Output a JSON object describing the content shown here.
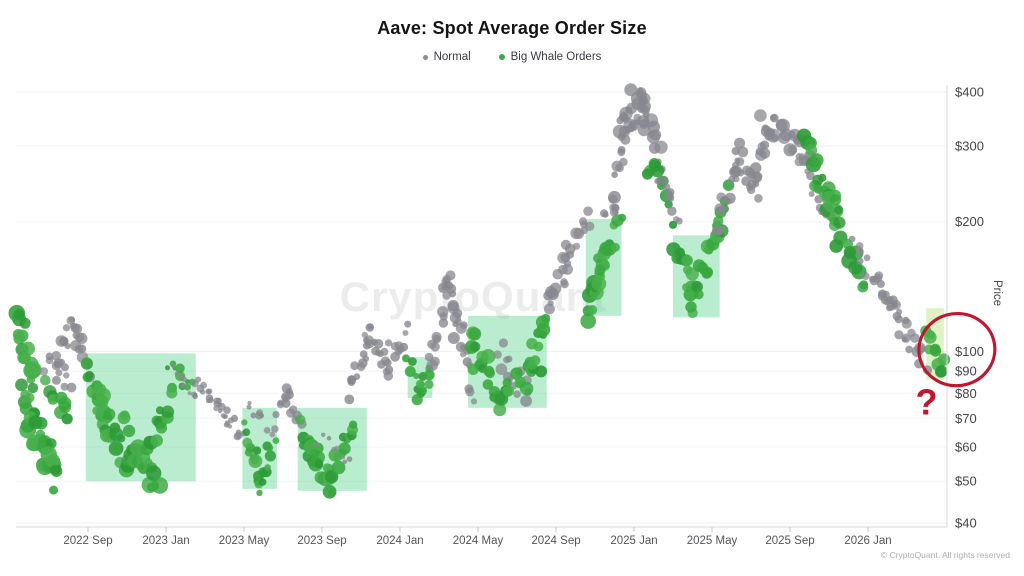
{
  "branding": {
    "watermark": "CryptoQuant",
    "copyright": "© CryptoQuant. All rights reserved"
  },
  "chart_data": {
    "type": "scatter",
    "title": "Aave: Spot Average Order Size",
    "ylabel": "Price",
    "yscale": "log",
    "ylim": [
      40,
      415
    ],
    "x_range": [
      "2022-05",
      "2026-05"
    ],
    "grid": "faint-horizontal",
    "legend": [
      {
        "label": "Normal",
        "color": "#8b8b93"
      },
      {
        "label": "Big Whale Orders",
        "color": "#3faa44"
      }
    ],
    "colors": {
      "normal": "#87878f",
      "whale": [
        "#2d9a37",
        "#38a73e",
        "#47b04b"
      ],
      "box_fill": "rgba(82,211,136,0.40)",
      "strip_fill": "rgba(170,221,99,0.38)",
      "annotation": "#bf1730",
      "axis_line": "#d8d8dc",
      "tick_text": "#55555a",
      "grid_line": "rgba(0,0,0,0.05)"
    },
    "y_ticks": [
      {
        "label": "$400",
        "value": 400
      },
      {
        "label": "$300",
        "value": 300
      },
      {
        "label": "$200",
        "value": 200
      },
      {
        "label": "$100",
        "value": 100
      },
      {
        "label": "$90",
        "value": 90
      },
      {
        "label": "$80",
        "value": 80
      },
      {
        "label": "$70",
        "value": 70
      },
      {
        "label": "$60",
        "value": 60
      },
      {
        "label": "$50",
        "value": 50
      },
      {
        "label": "$40",
        "value": 40
      }
    ],
    "x_ticks": [
      {
        "label": "2022 Sep",
        "date": "2022-09-01"
      },
      {
        "label": "2023 Jan",
        "date": "2023-01-01"
      },
      {
        "label": "2023 May",
        "date": "2023-05-01"
      },
      {
        "label": "2023 Sep",
        "date": "2023-09-01"
      },
      {
        "label": "2024 Jan",
        "date": "2024-01-01"
      },
      {
        "label": "2024 May",
        "date": "2024-05-01"
      },
      {
        "label": "2024 Sep",
        "date": "2024-09-01"
      },
      {
        "label": "2025 Jan",
        "date": "2025-01-01"
      },
      {
        "label": "2025 May",
        "date": "2025-05-01"
      },
      {
        "label": "2025 Sep",
        "date": "2025-09-01"
      },
      {
        "label": "2026 Jan",
        "date": "2026-01-01"
      }
    ],
    "highlight_boxes": [
      {
        "from": "2022-08-28",
        "to": "2023-02-17",
        "price_high": 99,
        "price_low": 50
      },
      {
        "from": "2023-04-29",
        "to": "2023-06-22",
        "price_high": 74,
        "price_low": 48
      },
      {
        "from": "2023-07-24",
        "to": "2023-11-10",
        "price_high": 74,
        "price_low": 47.5
      },
      {
        "from": "2024-01-13",
        "to": "2024-02-21",
        "price_high": 97,
        "price_low": 78
      },
      {
        "from": "2024-04-16",
        "to": "2024-08-17",
        "price_high": 121,
        "price_low": 74
      },
      {
        "from": "2024-10-17",
        "to": "2024-12-12",
        "price_high": 203,
        "price_low": 121
      },
      {
        "from": "2025-03-01",
        "to": "2025-05-13",
        "price_high": 186,
        "price_low": 120
      }
    ],
    "highlight_strip": {
      "from": "2026-03-31",
      "to": "2026-04-28",
      "price_high": 126,
      "price_low": 86
    },
    "annotations": {
      "highlight_circle": {
        "date": "2026-05-18",
        "price": 101
      },
      "question_mark": {
        "label": "?",
        "date": "2026-04-01",
        "price": 77
      }
    },
    "clusters": [
      {
        "from": "2022-05-13",
        "to": "2022-06-06",
        "p0": 121,
        "p1": 86,
        "type": "whale",
        "n": 16,
        "r": [
          4,
          9
        ],
        "s": 0.035
      },
      {
        "from": "2022-05-16",
        "to": "2022-06-17",
        "p0": 80,
        "p1": 71,
        "type": "whale",
        "n": 8,
        "r": [
          4,
          7
        ],
        "s": 0.02
      },
      {
        "from": "2022-05-29",
        "to": "2022-07-15",
        "p0": 73,
        "p1": 49,
        "type": "whale",
        "n": 24,
        "r": [
          4,
          9
        ],
        "s": 0.045
      },
      {
        "from": "2022-06-25",
        "to": "2022-08-06",
        "p0": 96,
        "p1": 83,
        "type": "normal",
        "n": 10,
        "r": [
          3,
          5
        ],
        "s": 0.03
      },
      {
        "from": "2022-06-29",
        "to": "2022-08-03",
        "p0": 86,
        "p1": 71,
        "type": "whale",
        "n": 9,
        "r": [
          4,
          7
        ],
        "s": 0.03
      },
      {
        "from": "2022-07-10",
        "to": "2022-08-11",
        "p0": 94,
        "p1": 117,
        "type": "normal",
        "n": 12,
        "r": [
          3,
          6
        ],
        "s": 0.025
      },
      {
        "from": "2022-08-08",
        "to": "2022-09-05",
        "p0": 117,
        "p1": 88,
        "type": "normal",
        "n": 13,
        "r": [
          3,
          6
        ],
        "s": 0.025
      },
      {
        "from": "2022-09-01",
        "to": "2022-10-02",
        "p0": 94,
        "p1": 66,
        "type": "whale",
        "n": 14,
        "r": [
          4,
          8
        ],
        "s": 0.03
      },
      {
        "from": "2022-09-19",
        "to": "2022-11-05",
        "p0": 76,
        "p1": 53,
        "type": "whale",
        "n": 18,
        "r": [
          4,
          8
        ],
        "s": 0.035
      },
      {
        "from": "2022-10-28",
        "to": "2022-12-19",
        "p0": 67,
        "p1": 48,
        "type": "whale",
        "n": 20,
        "r": [
          4,
          9
        ],
        "s": 0.035
      },
      {
        "from": "2022-12-09",
        "to": "2023-01-22",
        "p0": 59,
        "p1": 88,
        "type": "whale",
        "n": 14,
        "r": [
          4,
          7
        ],
        "s": 0.03
      },
      {
        "from": "2023-01-07",
        "to": "2023-02-17",
        "p0": 92,
        "p1": 80,
        "type": "whale",
        "n": 8,
        "r": [
          2,
          4
        ],
        "s": 0.02
      },
      {
        "from": "2023-01-10",
        "to": "2023-02-17",
        "p0": 89,
        "p1": 80,
        "type": "normal",
        "n": 8,
        "r": [
          2,
          4
        ],
        "s": 0.02
      },
      {
        "from": "2023-02-17",
        "to": "2023-03-18",
        "p0": 85,
        "p1": 76,
        "type": "normal",
        "n": 10,
        "r": [
          2,
          4
        ],
        "s": 0.02
      },
      {
        "from": "2023-03-09",
        "to": "2023-04-09",
        "p0": 78,
        "p1": 66,
        "type": "normal",
        "n": 10,
        "r": [
          2,
          4
        ],
        "s": 0.02
      },
      {
        "from": "2023-03-30",
        "to": "2023-04-29",
        "p0": 74,
        "p1": 62,
        "type": "normal",
        "n": 10,
        "r": [
          2,
          4
        ],
        "s": 0.02
      },
      {
        "from": "2023-05-02",
        "to": "2023-05-29",
        "p0": 66,
        "p1": 50,
        "type": "whale",
        "n": 12,
        "r": [
          3,
          7
        ],
        "s": 0.03
      },
      {
        "from": "2023-05-23",
        "to": "2023-06-19",
        "p0": 51,
        "p1": 60,
        "type": "whale",
        "n": 10,
        "r": [
          3,
          6
        ],
        "s": 0.03
      },
      {
        "from": "2023-05-07",
        "to": "2023-06-11",
        "p0": 73,
        "p1": 66,
        "type": "normal",
        "n": 8,
        "r": [
          2,
          4
        ],
        "s": 0.02
      },
      {
        "from": "2023-06-22",
        "to": "2023-07-12",
        "p0": 68,
        "p1": 84,
        "type": "normal",
        "n": 8,
        "r": [
          3,
          5
        ],
        "s": 0.02
      },
      {
        "from": "2023-07-05",
        "to": "2023-07-27",
        "p0": 82,
        "p1": 67,
        "type": "normal",
        "n": 8,
        "r": [
          3,
          5
        ],
        "s": 0.02
      },
      {
        "from": "2023-07-27",
        "to": "2023-08-22",
        "p0": 66,
        "p1": 57,
        "type": "whale",
        "n": 10,
        "r": [
          3,
          6
        ],
        "s": 0.025
      },
      {
        "from": "2023-08-08",
        "to": "2023-09-19",
        "p0": 58,
        "p1": 50,
        "type": "whale",
        "n": 16,
        "r": [
          4,
          8
        ],
        "s": 0.03
      },
      {
        "from": "2023-09-13",
        "to": "2023-10-20",
        "p0": 52,
        "p1": 71,
        "type": "whale",
        "n": 14,
        "r": [
          4,
          7
        ],
        "s": 0.03
      },
      {
        "from": "2023-08-25",
        "to": "2023-10-14",
        "p0": 62,
        "p1": 57,
        "type": "normal",
        "n": 8,
        "r": [
          2,
          3
        ],
        "s": 0.02
      },
      {
        "from": "2023-10-09",
        "to": "2023-11-18",
        "p0": 82,
        "p1": 111,
        "type": "normal",
        "n": 14,
        "r": [
          3,
          5
        ],
        "s": 0.025
      },
      {
        "from": "2023-11-09",
        "to": "2023-12-19",
        "p0": 111,
        "p1": 91,
        "type": "normal",
        "n": 12,
        "r": [
          3,
          5
        ],
        "s": 0.025
      },
      {
        "from": "2023-12-06",
        "to": "2024-01-13",
        "p0": 95,
        "p1": 111,
        "type": "normal",
        "n": 12,
        "r": [
          3,
          5
        ],
        "s": 0.025
      },
      {
        "from": "2024-01-15",
        "to": "2024-02-03",
        "p0": 95,
        "p1": 79,
        "type": "whale",
        "n": 8,
        "r": [
          3,
          6
        ],
        "s": 0.02
      },
      {
        "from": "2024-01-29",
        "to": "2024-02-20",
        "p0": 80,
        "p1": 92,
        "type": "whale",
        "n": 7,
        "r": [
          3,
          6
        ],
        "s": 0.02
      },
      {
        "from": "2024-02-17",
        "to": "2024-03-18",
        "p0": 92,
        "p1": 148,
        "type": "normal",
        "n": 14,
        "r": [
          3,
          6
        ],
        "s": 0.03
      },
      {
        "from": "2024-03-09",
        "to": "2024-04-06",
        "p0": 150,
        "p1": 114,
        "type": "normal",
        "n": 12,
        "r": [
          3,
          6
        ],
        "s": 0.03
      },
      {
        "from": "2024-03-26",
        "to": "2024-04-25",
        "p0": 118,
        "p1": 81,
        "type": "normal",
        "n": 12,
        "r": [
          3,
          6
        ],
        "s": 0.03
      },
      {
        "from": "2024-04-19",
        "to": "2024-06-05",
        "p0": 104,
        "p1": 78,
        "type": "whale",
        "n": 18,
        "r": [
          4,
          8
        ],
        "s": 0.04
      },
      {
        "from": "2024-06-02",
        "to": "2024-07-18",
        "p0": 99,
        "p1": 80,
        "type": "normal",
        "n": 14,
        "r": [
          3,
          6
        ],
        "s": 0.035
      },
      {
        "from": "2024-06-12",
        "to": "2024-08-06",
        "p0": 80,
        "p1": 95,
        "type": "whale",
        "n": 12,
        "r": [
          4,
          7
        ],
        "s": 0.03
      },
      {
        "from": "2024-07-18",
        "to": "2024-08-19",
        "p0": 95,
        "p1": 119,
        "type": "whale",
        "n": 10,
        "r": [
          4,
          7
        ],
        "s": 0.025
      },
      {
        "from": "2024-08-17",
        "to": "2024-09-19",
        "p0": 124,
        "p1": 160,
        "type": "normal",
        "n": 12,
        "r": [
          3,
          6
        ],
        "s": 0.025
      },
      {
        "from": "2024-09-10",
        "to": "2024-10-23",
        "p0": 160,
        "p1": 205,
        "type": "normal",
        "n": 14,
        "r": [
          3,
          6
        ],
        "s": 0.025
      },
      {
        "from": "2024-10-17",
        "to": "2024-11-15",
        "p0": 123,
        "p1": 160,
        "type": "whale",
        "n": 12,
        "r": [
          4,
          8
        ],
        "s": 0.03
      },
      {
        "from": "2024-11-03",
        "to": "2024-12-09",
        "p0": 150,
        "p1": 197,
        "type": "whale",
        "n": 12,
        "r": [
          4,
          8
        ],
        "s": 0.03
      },
      {
        "from": "2024-11-18",
        "to": "2024-12-06",
        "p0": 207,
        "p1": 220,
        "type": "normal",
        "n": 6,
        "r": [
          3,
          5
        ],
        "s": 0.015
      },
      {
        "from": "2024-11-27",
        "to": "2024-12-25",
        "p0": 215,
        "p1": 386,
        "type": "normal",
        "n": 16,
        "r": [
          3,
          7
        ],
        "s": 0.03
      },
      {
        "from": "2024-12-12",
        "to": "2025-01-22",
        "p0": 330,
        "p1": 392,
        "type": "normal",
        "n": 20,
        "r": [
          3,
          7
        ],
        "s": 0.03
      },
      {
        "from": "2025-01-07",
        "to": "2025-02-14",
        "p0": 380,
        "p1": 282,
        "type": "normal",
        "n": 16,
        "r": [
          3,
          7
        ],
        "s": 0.03
      },
      {
        "from": "2025-01-22",
        "to": "2025-02-26",
        "p0": 272,
        "p1": 226,
        "type": "whale",
        "n": 10,
        "r": [
          4,
          7
        ],
        "s": 0.025
      },
      {
        "from": "2025-02-11",
        "to": "2025-03-09",
        "p0": 252,
        "p1": 202,
        "type": "normal",
        "n": 8,
        "r": [
          3,
          5
        ],
        "s": 0.02
      },
      {
        "from": "2025-03-03",
        "to": "2025-04-05",
        "p0": 184,
        "p1": 131,
        "type": "whale",
        "n": 14,
        "r": [
          4,
          8
        ],
        "s": 0.03
      },
      {
        "from": "2025-03-27",
        "to": "2025-04-22",
        "p0": 129,
        "p1": 149,
        "type": "whale",
        "n": 8,
        "r": [
          4,
          7
        ],
        "s": 0.025
      },
      {
        "from": "2025-04-13",
        "to": "2025-05-12",
        "p0": 150,
        "p1": 192,
        "type": "whale",
        "n": 10,
        "r": [
          4,
          7
        ],
        "s": 0.025
      },
      {
        "from": "2025-05-08",
        "to": "2025-05-26",
        "p0": 195,
        "p1": 240,
        "type": "whale",
        "n": 7,
        "r": [
          4,
          6
        ],
        "s": 0.02
      },
      {
        "from": "2025-05-10",
        "to": "2025-06-17",
        "p0": 196,
        "p1": 289,
        "type": "normal",
        "n": 16,
        "r": [
          3,
          6
        ],
        "s": 0.025
      },
      {
        "from": "2025-06-08",
        "to": "2025-07-09",
        "p0": 286,
        "p1": 232,
        "type": "normal",
        "n": 10,
        "r": [
          3,
          5
        ],
        "s": 0.02
      },
      {
        "from": "2025-06-27",
        "to": "2025-08-03",
        "p0": 238,
        "p1": 330,
        "type": "normal",
        "n": 14,
        "r": [
          3,
          6
        ],
        "s": 0.025
      },
      {
        "from": "2025-07-18",
        "to": "2025-10-05",
        "p0": 344,
        "p1": 283,
        "type": "normal",
        "n": 24,
        "r": [
          3,
          7
        ],
        "s": 0.035
      },
      {
        "from": "2025-09-16",
        "to": "2025-11-03",
        "p0": 292,
        "p1": 201,
        "type": "normal",
        "n": 12,
        "r": [
          3,
          5
        ],
        "s": 0.03
      },
      {
        "from": "2025-09-26",
        "to": "2025-11-15",
        "p0": 308,
        "p1": 186,
        "type": "whale",
        "n": 18,
        "r": [
          4,
          8
        ],
        "s": 0.035
      },
      {
        "from": "2025-10-30",
        "to": "2025-12-25",
        "p0": 229,
        "p1": 144,
        "type": "whale",
        "n": 16,
        "r": [
          4,
          8
        ],
        "s": 0.035
      },
      {
        "from": "2025-12-11",
        "to": "2026-01-27",
        "p0": 178,
        "p1": 136,
        "type": "normal",
        "n": 12,
        "r": [
          3,
          5
        ],
        "s": 0.025
      },
      {
        "from": "2026-01-19",
        "to": "2026-02-28",
        "p0": 143,
        "p1": 108,
        "type": "normal",
        "n": 10,
        "r": [
          3,
          5
        ],
        "s": 0.025
      },
      {
        "from": "2026-02-01",
        "to": "2026-04-03",
        "p0": 129,
        "p1": 93,
        "type": "normal",
        "n": 16,
        "r": [
          3,
          6
        ],
        "s": 0.03
      },
      {
        "from": "2026-03-31",
        "to": "2026-04-27",
        "p0": 113,
        "p1": 88,
        "type": "whale",
        "n": 10,
        "r": [
          4,
          7
        ],
        "s": 0.03
      }
    ]
  }
}
